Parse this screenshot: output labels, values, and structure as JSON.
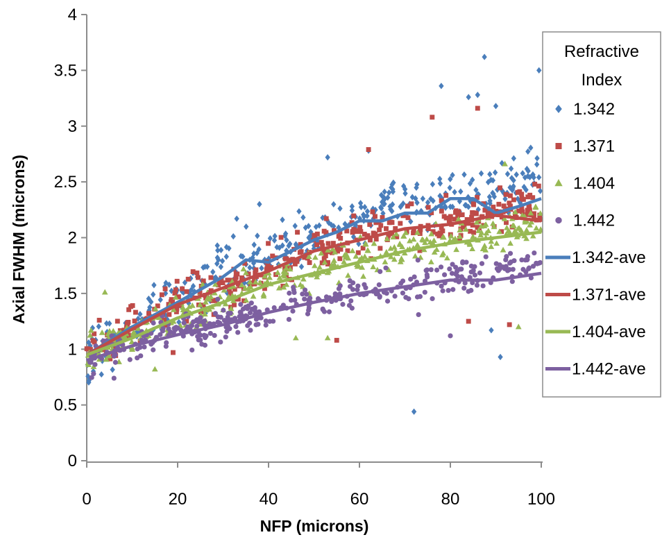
{
  "chart_data": {
    "type": "scatter",
    "title": "",
    "xlabel": "NFP (microns)",
    "ylabel": "Axial FWHM (microns)",
    "xlim": [
      0,
      100
    ],
    "ylim": [
      0,
      4
    ],
    "xticks": [
      0,
      20,
      40,
      60,
      80,
      100
    ],
    "yticks": [
      0,
      0.5,
      1,
      1.5,
      2,
      2.5,
      3,
      3.5,
      4
    ],
    "xtick_labels": [
      "0",
      "20",
      "40",
      "60",
      "80",
      "100"
    ],
    "ytick_labels": [
      "0",
      "0.5",
      "1",
      "1.5",
      "2",
      "2.5",
      "3",
      "3.5",
      "4"
    ],
    "grid": false,
    "legend_title": [
      "Refractive",
      "Index"
    ],
    "legend_position": "right",
    "series": [
      {
        "name": "1.342",
        "kind": "scatter",
        "marker": "diamond",
        "color": "#4a7ebb",
        "trend": [
          [
            0,
            0.95
          ],
          [
            10,
            1.2
          ],
          [
            20,
            1.45
          ],
          [
            30,
            1.7
          ],
          [
            40,
            1.85
          ],
          [
            50,
            2.0
          ],
          [
            60,
            2.2
          ],
          [
            70,
            2.35
          ],
          [
            80,
            2.4
          ],
          [
            90,
            2.45
          ],
          [
            100,
            2.55
          ]
        ],
        "spread": 0.22,
        "outliers": [
          [
            0.5,
            0.72
          ],
          [
            33,
            2.17
          ],
          [
            38,
            2.3
          ],
          [
            53,
            2.72
          ],
          [
            62,
            2.78
          ],
          [
            72,
            0.44
          ],
          [
            78,
            3.36
          ],
          [
            84,
            3.26
          ],
          [
            86,
            3.28
          ],
          [
            87.5,
            3.62
          ],
          [
            90,
            3.18
          ],
          [
            99.5,
            3.5
          ],
          [
            89,
            1.17
          ],
          [
            91,
            0.93
          ]
        ]
      },
      {
        "name": "1.371",
        "kind": "scatter",
        "marker": "square",
        "color": "#be4b48",
        "trend": [
          [
            0,
            0.95
          ],
          [
            10,
            1.18
          ],
          [
            20,
            1.4
          ],
          [
            30,
            1.55
          ],
          [
            40,
            1.7
          ],
          [
            50,
            1.9
          ],
          [
            60,
            2.0
          ],
          [
            70,
            2.1
          ],
          [
            80,
            2.15
          ],
          [
            90,
            2.25
          ],
          [
            100,
            2.3
          ]
        ],
        "spread": 0.18,
        "outliers": [
          [
            19,
            0.97
          ],
          [
            55,
            1.08
          ],
          [
            62,
            2.79
          ],
          [
            76,
            3.08
          ],
          [
            86,
            3.16
          ],
          [
            84,
            1.25
          ],
          [
            93,
            1.22
          ]
        ]
      },
      {
        "name": "1.404",
        "kind": "scatter",
        "marker": "triangle",
        "color": "#98b954",
        "trend": [
          [
            0,
            0.95
          ],
          [
            10,
            1.12
          ],
          [
            20,
            1.3
          ],
          [
            30,
            1.45
          ],
          [
            40,
            1.6
          ],
          [
            50,
            1.72
          ],
          [
            60,
            1.82
          ],
          [
            70,
            1.92
          ],
          [
            80,
            2.0
          ],
          [
            90,
            2.05
          ],
          [
            100,
            2.15
          ]
        ],
        "spread": 0.16,
        "outliers": [
          [
            4,
            1.51
          ],
          [
            15,
            0.82
          ],
          [
            46,
            1.1
          ],
          [
            53,
            1.1
          ],
          [
            92,
            2.66
          ],
          [
            95,
            1.2
          ]
        ]
      },
      {
        "name": "1.442",
        "kind": "scatter",
        "marker": "circle",
        "color": "#7d60a0",
        "trend": [
          [
            0,
            0.9
          ],
          [
            10,
            1.05
          ],
          [
            20,
            1.15
          ],
          [
            30,
            1.25
          ],
          [
            40,
            1.35
          ],
          [
            50,
            1.45
          ],
          [
            60,
            1.52
          ],
          [
            70,
            1.58
          ],
          [
            80,
            1.65
          ],
          [
            90,
            1.72
          ],
          [
            100,
            1.75
          ]
        ],
        "spread": 0.13,
        "outliers": [
          [
            1.5,
            0.78
          ],
          [
            6,
            0.74
          ],
          [
            73,
            1.31
          ],
          [
            80,
            1.12
          ]
        ]
      },
      {
        "name": "1.342-ave",
        "kind": "line",
        "color": "#4a7ebb",
        "x": [
          0,
          10,
          20,
          30,
          35,
          40,
          45,
          50,
          55,
          60,
          65,
          70,
          75,
          80,
          85,
          90,
          95,
          100
        ],
        "y": [
          0.95,
          1.2,
          1.42,
          1.65,
          1.8,
          1.78,
          1.88,
          1.98,
          2.05,
          2.15,
          2.15,
          2.22,
          2.22,
          2.35,
          2.35,
          2.22,
          2.28,
          2.35
        ]
      },
      {
        "name": "1.371-ave",
        "kind": "line",
        "color": "#be4b48",
        "x": [
          0,
          10,
          20,
          30,
          40,
          50,
          60,
          70,
          80,
          90,
          100
        ],
        "y": [
          0.95,
          1.18,
          1.4,
          1.55,
          1.7,
          1.88,
          1.98,
          2.08,
          2.12,
          2.2,
          2.15
        ]
      },
      {
        "name": "1.404-ave",
        "kind": "line",
        "color": "#98b954",
        "x": [
          0,
          10,
          20,
          30,
          40,
          50,
          60,
          70,
          80,
          90,
          100
        ],
        "y": [
          0.95,
          1.1,
          1.28,
          1.42,
          1.58,
          1.68,
          1.78,
          1.88,
          1.95,
          2.0,
          2.05
        ]
      },
      {
        "name": "1.442-ave",
        "kind": "line",
        "color": "#7d60a0",
        "x": [
          0,
          10,
          20,
          30,
          40,
          50,
          60,
          70,
          80,
          90,
          100
        ],
        "y": [
          0.9,
          1.03,
          1.13,
          1.22,
          1.33,
          1.42,
          1.5,
          1.56,
          1.62,
          1.62,
          1.68
        ]
      }
    ]
  }
}
